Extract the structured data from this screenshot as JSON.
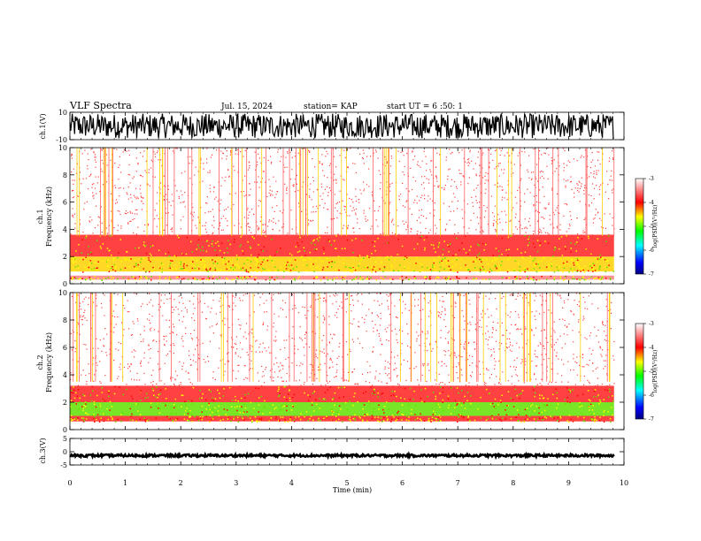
{
  "header": {
    "title": "VLF Spectra",
    "date": "Jul. 15, 2024",
    "station": "station= KAP",
    "start": "start UT = 6 :50: 1"
  },
  "colors": {
    "waveform": "#000000",
    "colormap": [
      "#00007f",
      "#0000ff",
      "#00ffff",
      "#00ff00",
      "#ffff00",
      "#ff0000",
      "#ffffff"
    ]
  },
  "chart_data": [
    {
      "type": "line",
      "name": "ch1-waveform",
      "ylabel": "ch.1(V)",
      "ylim": [
        -10,
        10
      ],
      "yticks": [
        "10",
        "-10"
      ],
      "xlim": [
        0,
        10
      ],
      "x_extent": [
        0,
        9.82
      ],
      "description_value": "noise band filling most of ±10 V range",
      "envelope": [
        -9,
        9
      ]
    },
    {
      "type": "heatmap",
      "name": "ch1-spectrogram",
      "ylabel": "ch.1",
      "ylabel2": "Frequency (kHz)",
      "ylim": [
        0,
        10
      ],
      "yticks": [
        "0",
        "2",
        "4",
        "6",
        "8",
        "10"
      ],
      "xlim": [
        0,
        10
      ],
      "x_extent": [
        0,
        9.82
      ],
      "bands": [
        {
          "fmin": 0.3,
          "fmax": 0.6,
          "level": -3.8
        },
        {
          "fmin": 0.9,
          "fmax": 1.3,
          "level": -4.3
        },
        {
          "fmin": 1.3,
          "fmax": 2.0,
          "level": -4.5
        },
        {
          "fmin": 2.0,
          "fmax": 3.6,
          "level": -4.0
        },
        {
          "fmin": 3.6,
          "fmax": 10,
          "level": -3.4
        }
      ],
      "colorbar": {
        "label": "log(PSD)(V²/Hz)",
        "ticks": [
          "-3",
          "-4",
          "-5",
          "-6",
          "-7"
        ],
        "range": [
          -7,
          -3
        ]
      }
    },
    {
      "type": "heatmap",
      "name": "ch2-spectrogram",
      "ylabel": "ch.2",
      "ylabel2": "Frequency (kHz)",
      "ylim": [
        0,
        10
      ],
      "yticks": [
        "0",
        "2",
        "4",
        "6",
        "8",
        "10"
      ],
      "xlim": [
        0,
        10
      ],
      "x_extent": [
        0,
        9.82
      ],
      "bands": [
        {
          "fmin": 0.6,
          "fmax": 1.0,
          "level": -4.0
        },
        {
          "fmin": 1.0,
          "fmax": 2.0,
          "level": -4.6
        },
        {
          "fmin": 2.0,
          "fmax": 3.2,
          "level": -4.1
        },
        {
          "fmin": 3.2,
          "fmax": 10,
          "level": -3.3
        }
      ],
      "colorbar": {
        "label": "log(PSD)(V²/Hz)",
        "ticks": [
          "-3",
          "-4",
          "-5",
          "-6",
          "-7"
        ],
        "range": [
          -7,
          -3
        ]
      }
    },
    {
      "type": "line",
      "name": "ch3-waveform",
      "ylabel": "ch.3(V)",
      "ylim": [
        -5,
        5
      ],
      "yticks": [
        "5",
        "0",
        "-5"
      ],
      "xlim": [
        0,
        10
      ],
      "x_extent": [
        0,
        9.82
      ],
      "level": -1.4,
      "envelope": [
        -1.9,
        -1.0
      ]
    }
  ],
  "xaxis": {
    "label": "Time (min)",
    "ticks": [
      "0",
      "1",
      "2",
      "3",
      "4",
      "5",
      "6",
      "7",
      "8",
      "9",
      "10"
    ]
  }
}
